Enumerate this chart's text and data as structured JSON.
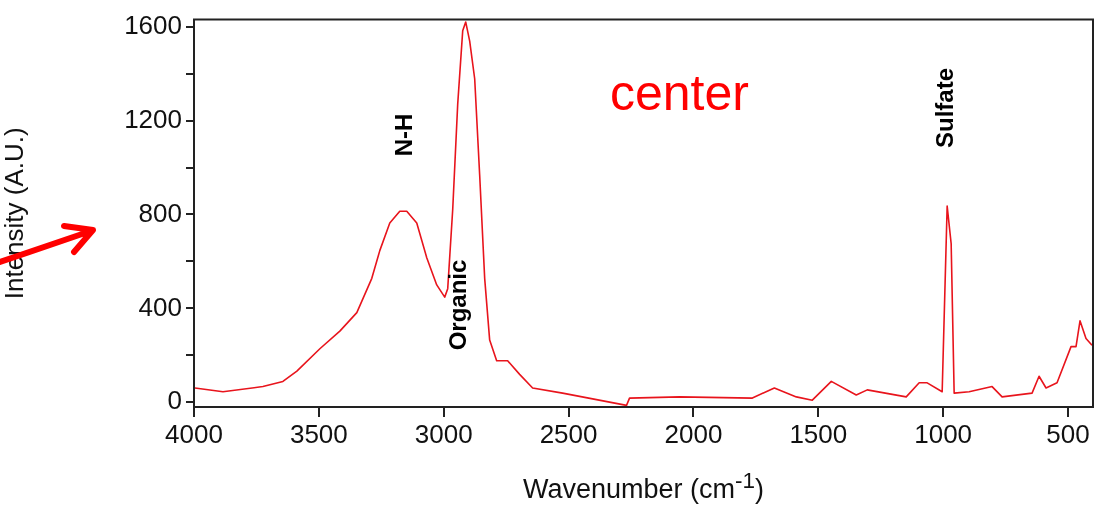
{
  "chart_data": {
    "type": "line",
    "xlabel": "Wavenumber (cm$^{-1}$)",
    "ylabel": "Intensity (A.U.)",
    "xlim": [
      4000,
      400
    ],
    "ylim": [
      -20,
      1630
    ],
    "xticks": [
      4000,
      3500,
      3000,
      2500,
      2000,
      1500,
      1000,
      500
    ],
    "yticks": [
      0,
      {
        "value": 200,
        "label": null
      },
      400,
      {
        "value": 600,
        "label": null
      },
      800,
      {
        "value": 1000,
        "label": null
      },
      1200,
      {
        "value": 1400,
        "label": null
      },
      1600
    ],
    "grid": false,
    "legend": false,
    "marker": "none",
    "line_style": "solid",
    "series": [
      {
        "color": "#e8141c",
        "x": [
          3996,
          3884,
          3724,
          3644,
          3588,
          3496,
          3416,
          3348,
          3288,
          3256,
          3216,
          3176,
          3148,
          3108,
          3068,
          3028,
          2996,
          2984,
          2964,
          2944,
          2924,
          2912,
          2896,
          2876,
          2856,
          2836,
          2816,
          2788,
          2744,
          2696,
          2644,
          2524,
          2268,
          2256,
          2056,
          1764,
          1676,
          1588,
          1524,
          1448,
          1348,
          1304,
          1148,
          1096,
          1064,
          1004,
          984,
          968,
          956,
          896,
          804,
          764,
          644,
          616,
          588,
          544,
          488,
          468,
          452,
          428,
          404
        ],
        "values": [
          61,
          45,
          67,
          89,
          133,
          228,
          303,
          382,
          528,
          646,
          764,
          814,
          814,
          764,
          616,
          500,
          448,
          484,
          821,
          1270,
          1582,
          1620,
          1538,
          1378,
          967,
          528,
          265,
          177,
          177,
          119,
          61,
          39,
          -13,
          18,
          23,
          18,
          61,
          23,
          9,
          89,
          31,
          53,
          23,
          83,
          83,
          45,
          836,
          676,
          39,
          45,
          67,
          23,
          39,
          111,
          61,
          83,
          237,
          237,
          347,
          272,
          243
        ]
      }
    ],
    "annotations": [
      "N-H",
      "Organic",
      "Sulfate",
      "center"
    ]
  }
}
